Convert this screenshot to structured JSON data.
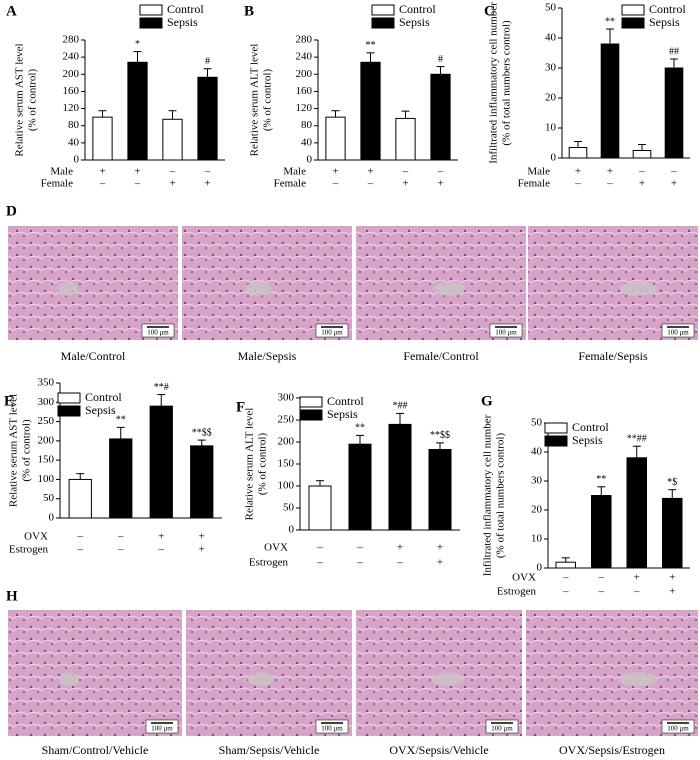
{
  "chart_data": [
    {
      "type": "bar",
      "label": "A",
      "ylabel": [
        "Relative serum AST level",
        "(% of control)"
      ],
      "ylim": [
        0,
        280
      ],
      "yticks": [
        0,
        40,
        80,
        120,
        160,
        200,
        240,
        280
      ],
      "series": [
        {
          "name": "Control",
          "color": "#ffffff",
          "values": [
            100,
            null,
            95,
            null
          ],
          "errors": [
            15,
            null,
            20,
            null
          ]
        },
        {
          "name": "Sepsis",
          "color": "#000000",
          "values": [
            null,
            228,
            null,
            193
          ],
          "errors": [
            null,
            25,
            null,
            20
          ]
        }
      ],
      "annotations": [
        null,
        "*",
        null,
        "#"
      ],
      "conditions": [
        {
          "name": "Male",
          "signs": [
            "+",
            "+",
            "–",
            "–"
          ]
        },
        {
          "name": "Female",
          "signs": [
            "–",
            "–",
            "+",
            "+"
          ]
        }
      ]
    },
    {
      "type": "bar",
      "label": "B",
      "ylabel": [
        "Relative serum ALT level",
        "(% of control)"
      ],
      "ylim": [
        0,
        280
      ],
      "yticks": [
        0,
        40,
        80,
        120,
        160,
        200,
        240,
        280
      ],
      "series": [
        {
          "name": "Control",
          "color": "#ffffff",
          "values": [
            100,
            null,
            97,
            null
          ],
          "errors": [
            15,
            null,
            17,
            null
          ]
        },
        {
          "name": "Sepsis",
          "color": "#000000",
          "values": [
            null,
            228,
            null,
            200
          ],
          "errors": [
            null,
            22,
            null,
            18
          ]
        }
      ],
      "annotations": [
        null,
        "**",
        null,
        "#"
      ],
      "conditions": [
        {
          "name": "Male",
          "signs": [
            "+",
            "+",
            "–",
            "–"
          ]
        },
        {
          "name": "Female",
          "signs": [
            "–",
            "–",
            "+",
            "+"
          ]
        }
      ]
    },
    {
      "type": "bar",
      "label": "C",
      "ylabel": [
        "Infiltrated inflammatory cell number",
        "(% of total numbers control)"
      ],
      "ylim": [
        0,
        50
      ],
      "yticks": [
        0,
        10,
        20,
        30,
        40,
        50
      ],
      "series": [
        {
          "name": "Control",
          "color": "#ffffff",
          "values": [
            3.5,
            null,
            2.5,
            null
          ],
          "errors": [
            2,
            null,
            2,
            null
          ]
        },
        {
          "name": "Sepsis",
          "color": "#000000",
          "values": [
            null,
            38,
            null,
            30
          ],
          "errors": [
            null,
            5,
            null,
            3
          ]
        }
      ],
      "annotations": [
        null,
        "**",
        null,
        "##"
      ],
      "conditions": [
        {
          "name": "Male",
          "signs": [
            "+",
            "+",
            "–",
            "–"
          ]
        },
        {
          "name": "Female",
          "signs": [
            "–",
            "–",
            "+",
            "+"
          ]
        }
      ]
    },
    {
      "type": "bar",
      "label": "E",
      "ylabel": [
        "Relative serum AST level",
        "(% of control)"
      ],
      "ylim": [
        0,
        350
      ],
      "yticks": [
        0,
        50,
        100,
        150,
        200,
        250,
        300,
        350
      ],
      "series": [
        {
          "name": "Control",
          "color": "#ffffff",
          "values": [
            100,
            null,
            null,
            null
          ],
          "errors": [
            15,
            null,
            null,
            null
          ]
        },
        {
          "name": "Sepsis",
          "color": "#000000",
          "values": [
            null,
            205,
            290,
            187
          ],
          "errors": [
            null,
            30,
            30,
            15
          ]
        }
      ],
      "annotations": [
        null,
        "**",
        "**#",
        "**$$"
      ],
      "conditions": [
        {
          "name": "OVX",
          "signs": [
            "–",
            "–",
            "+",
            "+"
          ]
        },
        {
          "name": "Estrogen",
          "signs": [
            "–",
            "–",
            "–",
            "+"
          ]
        }
      ]
    },
    {
      "type": "bar",
      "label": "F",
      "ylabel": [
        "Relative serum ALT level",
        "(% of control)"
      ],
      "ylim": [
        0,
        300
      ],
      "yticks": [
        0,
        50,
        100,
        150,
        200,
        250,
        300
      ],
      "series": [
        {
          "name": "Control",
          "color": "#ffffff",
          "values": [
            100,
            null,
            null,
            null
          ],
          "errors": [
            12,
            null,
            null,
            null
          ]
        },
        {
          "name": "Sepsis",
          "color": "#000000",
          "values": [
            null,
            195,
            240,
            183
          ],
          "errors": [
            null,
            20,
            25,
            15
          ]
        }
      ],
      "annotations": [
        null,
        "**",
        "*##",
        "**$$"
      ],
      "conditions": [
        {
          "name": "OVX",
          "signs": [
            "–",
            "–",
            "+",
            "+"
          ]
        },
        {
          "name": "Estrogen",
          "signs": [
            "–",
            "–",
            "–",
            "+"
          ]
        }
      ]
    },
    {
      "type": "bar",
      "label": "G",
      "ylabel": [
        "Infiltrated inflammatory cell number",
        "(% of total numbers control)"
      ],
      "ylim": [
        0,
        50
      ],
      "yticks": [
        0,
        10,
        20,
        30,
        40,
        50
      ],
      "series": [
        {
          "name": "Control",
          "color": "#ffffff",
          "values": [
            2,
            null,
            null,
            null
          ],
          "errors": [
            1.5,
            null,
            null,
            null
          ]
        },
        {
          "name": "Sepsis",
          "color": "#000000",
          "values": [
            null,
            25,
            38,
            24
          ],
          "errors": [
            null,
            3,
            4,
            3
          ]
        }
      ],
      "annotations": [
        null,
        "**",
        "**##",
        "*$"
      ],
      "conditions": [
        {
          "name": "OVX",
          "signs": [
            "–",
            "–",
            "+",
            "+"
          ]
        },
        {
          "name": "Estrogen",
          "signs": [
            "–",
            "–",
            "–",
            "+"
          ]
        }
      ]
    }
  ],
  "image_panels": [
    {
      "label": "D",
      "scale_bar": "100 μm",
      "captions": [
        "Male/Control",
        "Male/Sepsis",
        "Female/Control",
        "Female/Sepsis"
      ]
    },
    {
      "label": "H",
      "scale_bar": "100 μm",
      "captions": [
        "Sham/Control/Vehicle",
        "Sham/Sepsis/Vehicle",
        "OVX/Sepsis/Vehicle",
        "OVX/Sepsis/Estrogen"
      ]
    }
  ]
}
